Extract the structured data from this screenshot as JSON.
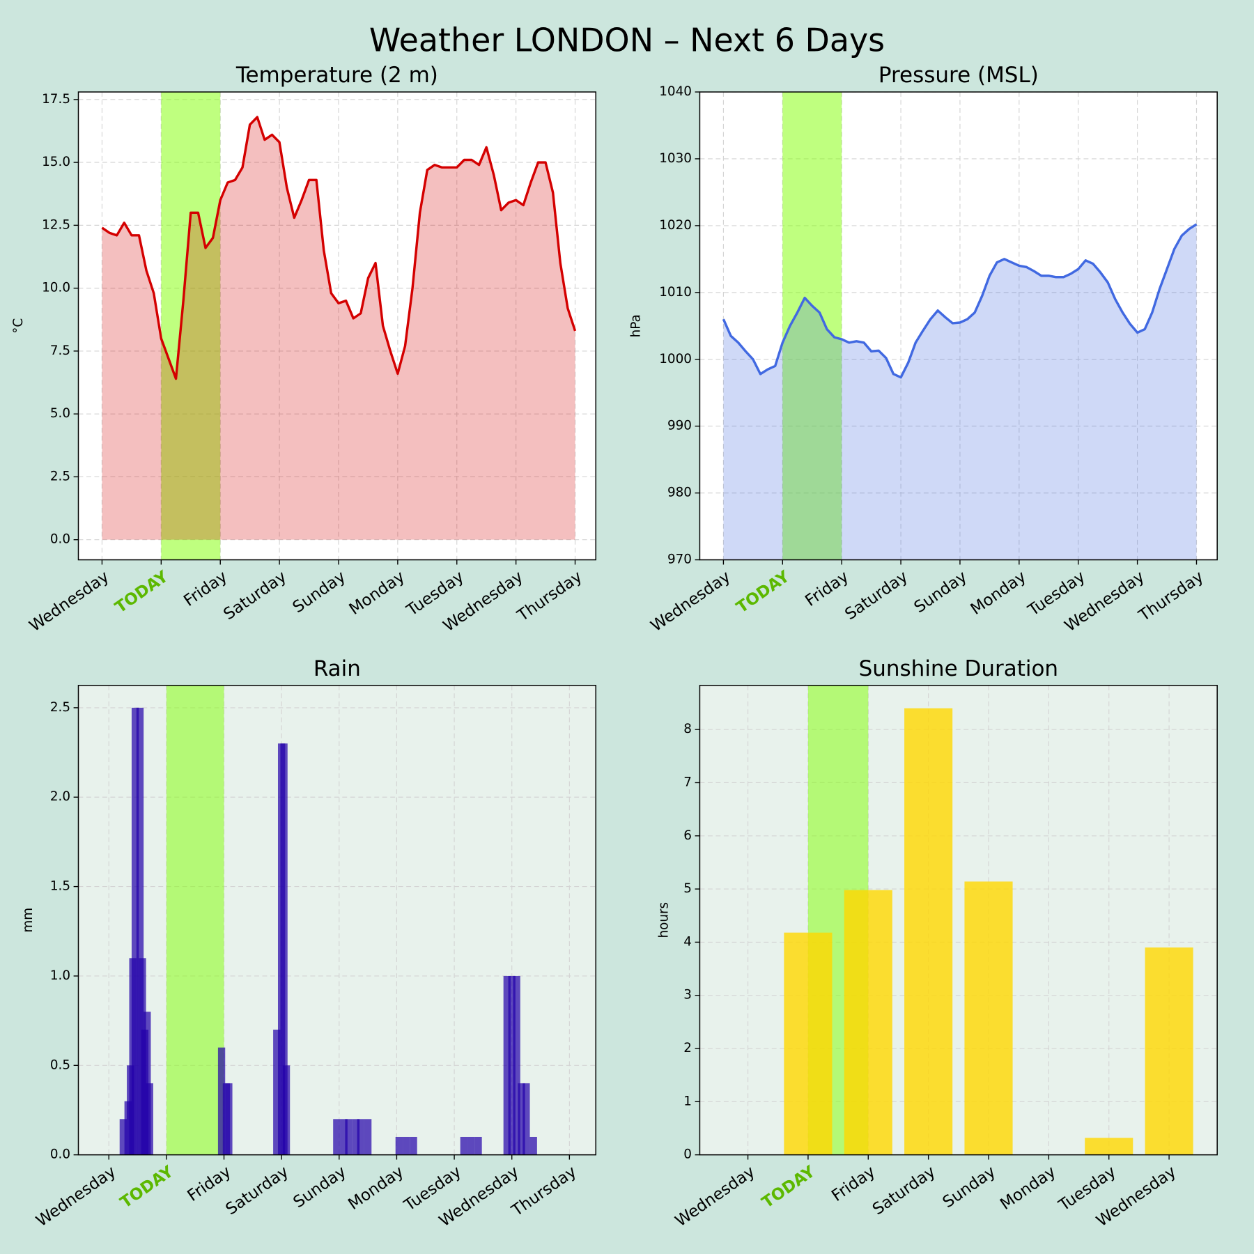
{
  "title": "Weather LONDON – Next 6 Days",
  "chart_data": [
    {
      "type": "line",
      "title": "Temperature (2 m)",
      "ylabel": "°C",
      "color": "#d40000",
      "fill_opacity": 0.25,
      "facecolor": "#ffffff",
      "highlight": [
        8,
        16
      ],
      "highlight_color": "#7fff00",
      "highlight_label_color": "#5cb800",
      "grid": true,
      "xlim": [
        -3.2,
        66.8
      ],
      "xticks": [
        {
          "value": 0,
          "label": "Wednesday"
        },
        {
          "value": 8,
          "label": "TODAY"
        },
        {
          "value": 16,
          "label": "Friday"
        },
        {
          "value": 24,
          "label": "Saturday"
        },
        {
          "value": 32,
          "label": "Sunday"
        },
        {
          "value": 40,
          "label": "Monday"
        },
        {
          "value": 48,
          "label": "Tuesday"
        },
        {
          "value": 56,
          "label": "Wednesday"
        },
        {
          "value": 64,
          "label": "Thursday"
        }
      ],
      "ylim": [
        -0.8,
        17.8
      ],
      "yticks": [
        {
          "value": 0,
          "label": "0.0"
        },
        2.5,
        {
          "value": 5,
          "label": "5.0"
        },
        7.5,
        {
          "value": 10,
          "label": "10.0"
        },
        12.5,
        {
          "value": 15,
          "label": "15.0"
        },
        17.5
      ],
      "values": [
        12.4,
        12.2,
        12.1,
        12.6,
        12.1,
        12.1,
        10.7,
        9.8,
        8.0,
        7.2,
        6.4,
        9.5,
        13.0,
        13.0,
        11.6,
        12.0,
        13.5,
        14.2,
        14.3,
        14.8,
        16.5,
        16.8,
        15.9,
        16.1,
        15.8,
        14.0,
        12.8,
        13.5,
        14.3,
        14.3,
        11.5,
        9.8,
        9.4,
        9.5,
        8.8,
        9.0,
        10.4,
        11.0,
        8.5,
        7.5,
        6.6,
        7.7,
        10.0,
        13.0,
        14.7,
        14.9,
        14.8,
        14.8,
        14.8,
        15.1,
        15.1,
        14.9,
        15.6,
        14.5,
        13.1,
        13.4,
        13.5,
        13.3,
        14.2,
        15.0,
        15.0,
        13.8,
        11.0,
        9.2,
        8.3
      ]
    },
    {
      "type": "line",
      "title": "Pressure (MSL)",
      "ylabel": "hPa",
      "color": "#4169e1",
      "fill_opacity": 0.25,
      "facecolor": "#ffffff",
      "highlight": [
        8,
        16
      ],
      "highlight_color": "#7fff00",
      "highlight_label_color": "#5cb800",
      "grid": true,
      "xlim": [
        -3.2,
        66.8
      ],
      "xticks": [
        {
          "value": 0,
          "label": "Wednesday"
        },
        {
          "value": 8,
          "label": "TODAY"
        },
        {
          "value": 16,
          "label": "Friday"
        },
        {
          "value": 24,
          "label": "Saturday"
        },
        {
          "value": 32,
          "label": "Sunday"
        },
        {
          "value": 40,
          "label": "Monday"
        },
        {
          "value": 48,
          "label": "Tuesday"
        },
        {
          "value": 56,
          "label": "Wednesday"
        },
        {
          "value": 64,
          "label": "Thursday"
        }
      ],
      "ylim": [
        970,
        1040
      ],
      "yticks": [
        970,
        980,
        990,
        1000,
        1010,
        1020,
        1030,
        1040
      ],
      "values": [
        1006,
        1003.5,
        1002.5,
        1001.2,
        1000,
        997.8,
        998.5,
        999,
        1002.5,
        1005,
        1007,
        1009.2,
        1008,
        1007,
        1004.5,
        1003.3,
        1003,
        1002.5,
        1002.7,
        1002.5,
        1001.2,
        1001.3,
        1000.2,
        997.8,
        997.3,
        999.5,
        1002.5,
        1004.3,
        1006,
        1007.3,
        1006.3,
        1005.4,
        1005.5,
        1006,
        1007,
        1009.5,
        1012.5,
        1014.5,
        1015,
        1014.5,
        1014,
        1013.8,
        1013.2,
        1012.5,
        1012.5,
        1012.3,
        1012.3,
        1012.8,
        1013.5,
        1014.8,
        1014.3,
        1013,
        1011.5,
        1009,
        1007,
        1005.3,
        1004,
        1004.5,
        1007,
        1010.5,
        1013.5,
        1016.5,
        1018.5,
        1019.5,
        1020.2
      ]
    },
    {
      "type": "bar",
      "title": "Rain",
      "ylabel": "mm",
      "color": "#2200aa",
      "bar_opacity": 0.7,
      "facecolor": "#e8f2ec",
      "highlight": [
        24,
        48
      ],
      "highlight_color": "#7fff00",
      "highlight_label_color": "#5cb800",
      "grid": true,
      "xlim": [
        -12.7,
        203
      ],
      "xticks": [
        {
          "value": 0,
          "label": "Wednesday"
        },
        {
          "value": 24,
          "label": "TODAY"
        },
        {
          "value": 48,
          "label": "Friday"
        },
        {
          "value": 72,
          "label": "Saturday"
        },
        {
          "value": 96,
          "label": "Sunday"
        },
        {
          "value": 120,
          "label": "Monday"
        },
        {
          "value": 144,
          "label": "Tuesday"
        },
        {
          "value": 168,
          "label": "Wednesday"
        },
        {
          "value": 192,
          "label": "Thursday"
        }
      ],
      "ylim": [
        0,
        2.625
      ],
      "yticks": [
        {
          "value": 0,
          "label": "0.0"
        },
        0.5,
        {
          "value": 1,
          "label": "1.0"
        },
        1.5,
        {
          "value": 2,
          "label": "2.0"
        },
        2.5
      ],
      "x": [
        6,
        8,
        9,
        10,
        11,
        13,
        14,
        15,
        16,
        17,
        47,
        49,
        50,
        70,
        72,
        73,
        74,
        95,
        98,
        100,
        103,
        105,
        108,
        121,
        124,
        127,
        148,
        151,
        154,
        166,
        168,
        170,
        172,
        174,
        177
      ],
      "values": [
        0.2,
        0.3,
        0.5,
        1.1,
        2.5,
        2.5,
        1.1,
        0.7,
        0.8,
        0.4,
        0.6,
        0.4,
        0.4,
        0.7,
        2.3,
        2.3,
        0.5,
        0.2,
        0.2,
        0.2,
        0.2,
        0.2,
        0.2,
        0.1,
        0.1,
        0.1,
        0.1,
        0.1,
        0.1,
        1.0,
        1.0,
        1.0,
        0.4,
        0.4,
        0.1
      ]
    },
    {
      "type": "category_bar",
      "title": "Sunshine Duration",
      "ylabel": "hours",
      "color": "#ffd700",
      "bar_opacity": 0.8,
      "facecolor": "#e8f2ec",
      "highlight": [
        1,
        2
      ],
      "highlight_color": "#7fff00",
      "highlight_label_color": "#5cb800",
      "grid": true,
      "xlim": [
        -0.8,
        7.8
      ],
      "ylim": [
        0,
        8.83
      ],
      "yticks": [
        0,
        1,
        2,
        3,
        4,
        5,
        6,
        7,
        8
      ],
      "categories": [
        "Wednesday",
        "TODAY",
        "Friday",
        "Saturday",
        "Sunday",
        "Monday",
        "Tuesday",
        "Wednesday"
      ],
      "values": [
        0,
        4.18,
        4.98,
        8.4,
        5.14,
        0,
        0.32,
        3.9
      ]
    }
  ]
}
